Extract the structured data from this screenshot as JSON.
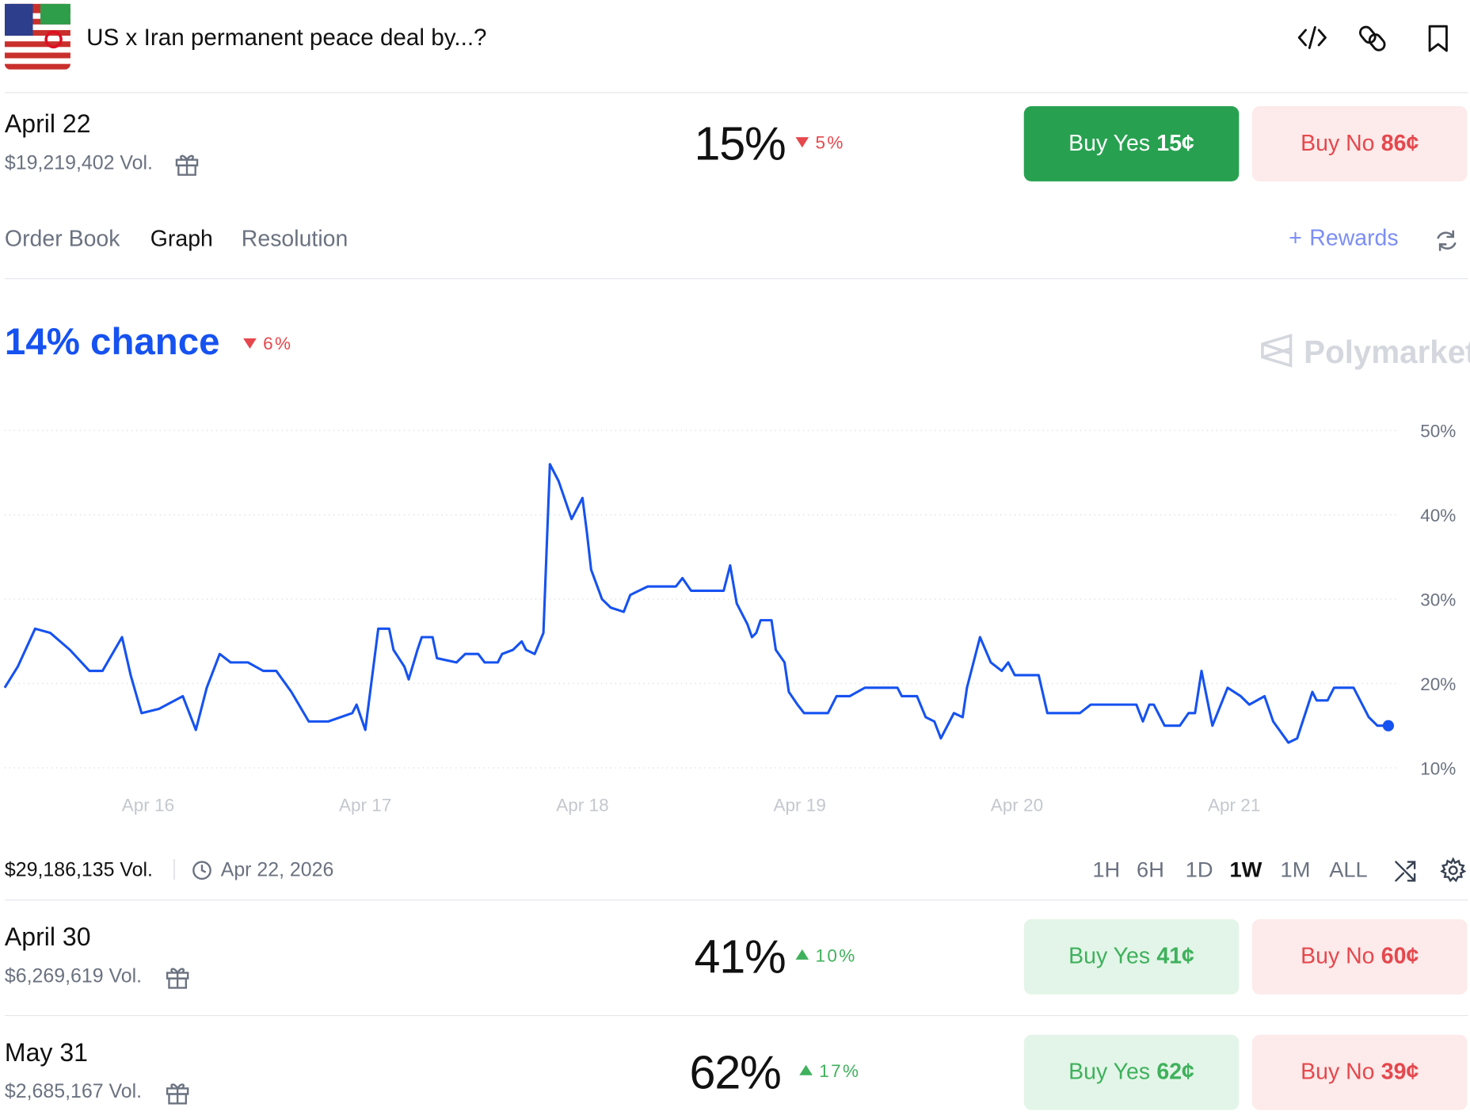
{
  "header": {
    "title": "US x Iran permanent peace deal by...?"
  },
  "markets": [
    {
      "date": "April 22",
      "volume": "$19,219,402 Vol.",
      "percent": "15%",
      "change": "5%",
      "direction": "down",
      "buy_yes": "Buy Yes",
      "yes_price": "15¢",
      "buy_no": "Buy No",
      "no_price": "86¢",
      "selected": true
    },
    {
      "date": "April 30",
      "volume": "$6,269,619 Vol.",
      "percent": "41%",
      "change": "10%",
      "direction": "up",
      "buy_yes": "Buy Yes",
      "yes_price": "41¢",
      "buy_no": "Buy No",
      "no_price": "60¢",
      "selected": false
    },
    {
      "date": "May 31",
      "volume": "$2,685,167 Vol.",
      "percent": "62%",
      "change": "17%",
      "direction": "up",
      "buy_yes": "Buy Yes",
      "yes_price": "62¢",
      "buy_no": "Buy No",
      "no_price": "39¢",
      "selected": false
    }
  ],
  "tabs": {
    "items": [
      "Order Book",
      "Graph",
      "Resolution"
    ],
    "active": 1,
    "rewards": "Rewards"
  },
  "graph": {
    "chance": "14% chance",
    "change": "6%",
    "watermark": "Polymarket",
    "footer_volume": "$29,186,135 Vol.",
    "footer_date": "Apr 22, 2026",
    "ranges": [
      "1H",
      "6H",
      "1D",
      "1W",
      "1M",
      "ALL"
    ],
    "active_range": 3
  },
  "chart_data": {
    "type": "line",
    "xlim": [
      15.34,
      21.71
    ],
    "xticks": [
      {
        "value": 16,
        "label": "Apr 16"
      },
      {
        "value": 17,
        "label": "Apr 17"
      },
      {
        "value": 18,
        "label": "Apr 18"
      },
      {
        "value": 19,
        "label": "Apr 19"
      },
      {
        "value": 20,
        "label": "Apr 20"
      },
      {
        "value": 21,
        "label": "Apr 21"
      }
    ],
    "ylim": [
      10,
      50
    ],
    "yticks": [
      {
        "value": 10,
        "label": "10%"
      },
      {
        "value": 20,
        "label": "20%"
      },
      {
        "value": 30,
        "label": "30%"
      },
      {
        "value": 40,
        "label": "40%"
      },
      {
        "value": 50,
        "label": "50%"
      }
    ],
    "grid": true,
    "series": [
      {
        "color": "#1652f0",
        "x": [
          15.34,
          15.4,
          15.48,
          15.55,
          15.64,
          15.73,
          15.79,
          15.88,
          15.92,
          15.97,
          16.05,
          16.16,
          16.22,
          16.27,
          16.33,
          16.38,
          16.46,
          16.53,
          16.59,
          16.66,
          16.74,
          16.83,
          16.94,
          16.96,
          17.0,
          17.06,
          17.11,
          17.13,
          17.18,
          17.2,
          17.24,
          17.26,
          17.31,
          17.33,
          17.42,
          17.46,
          17.52,
          17.55,
          17.61,
          17.63,
          17.68,
          17.72,
          17.74,
          17.78,
          17.82,
          17.85,
          17.89,
          17.95,
          18.0,
          18.02,
          18.04,
          18.09,
          18.13,
          18.19,
          18.22,
          18.26,
          18.3,
          18.43,
          18.46,
          18.5,
          18.65,
          18.68,
          18.71,
          18.76,
          18.78,
          18.8,
          18.82,
          18.87,
          18.89,
          18.93,
          18.95,
          18.99,
          19.02,
          19.13,
          19.17,
          19.23,
          19.3,
          19.45,
          19.47,
          19.54,
          19.58,
          19.62,
          19.65,
          19.69,
          19.71,
          19.75,
          19.77,
          19.83,
          19.88,
          19.93,
          19.96,
          19.99,
          20.1,
          20.14,
          20.29,
          20.34,
          20.55,
          20.58,
          20.61,
          20.63,
          20.68,
          20.75,
          20.79,
          20.82,
          20.85,
          20.9,
          20.97,
          21.03,
          21.07,
          21.14,
          21.18,
          21.25,
          21.29,
          21.36,
          21.38,
          21.43,
          21.46,
          21.55,
          21.62,
          21.66,
          21.71
        ],
        "values": [
          19.5,
          22,
          26.5,
          26,
          24,
          21.5,
          21.5,
          25.5,
          21,
          16.5,
          17,
          18.5,
          14.5,
          19.5,
          23.5,
          22.5,
          22.5,
          21.5,
          21.5,
          19,
          15.5,
          15.5,
          16.5,
          17.5,
          14.5,
          26.5,
          26.5,
          24,
          22,
          20.5,
          24,
          25.5,
          25.5,
          23,
          22.5,
          23.5,
          23.5,
          22.5,
          22.5,
          23.5,
          24,
          25,
          24,
          23.5,
          26,
          46,
          44,
          39.5,
          42,
          38,
          33.5,
          30,
          29,
          28.5,
          30.5,
          31,
          31.5,
          31.5,
          32.5,
          31,
          31,
          34,
          29.5,
          27,
          25.5,
          26,
          27.5,
          27.5,
          24,
          22.5,
          19,
          17.5,
          16.5,
          16.5,
          18.5,
          18.5,
          19.5,
          19.5,
          18.5,
          18.5,
          16,
          15.5,
          13.5,
          15.5,
          16.5,
          16,
          19.5,
          25.5,
          22.5,
          21.5,
          22.5,
          21,
          21,
          16.5,
          16.5,
          17.5,
          17.5,
          15.5,
          17.5,
          17.5,
          15,
          15,
          16.5,
          16.5,
          21.5,
          15,
          19.5,
          18.5,
          17.5,
          18.5,
          15.5,
          13,
          13.5,
          19,
          18,
          18,
          19.5,
          19.5,
          16,
          15,
          15
        ]
      }
    ]
  }
}
